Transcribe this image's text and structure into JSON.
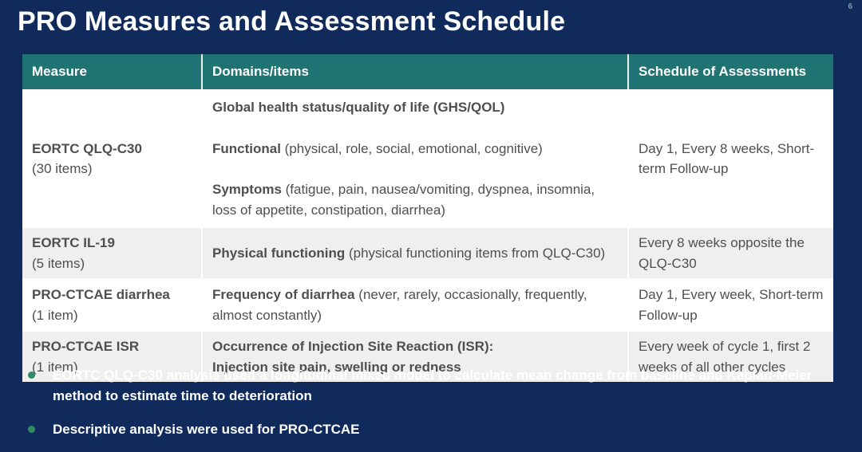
{
  "slide": {
    "title": "PRO Measures and Assessment Schedule",
    "page_number": "6"
  },
  "table": {
    "headers": [
      "Measure",
      "Domains/items",
      "Schedule of Assessments"
    ],
    "rows": [
      {
        "measure": "EORTC QLQ-C30",
        "items": "(30 items)",
        "domains": [
          {
            "b": "Global health status/quality of life (GHS/QOL)",
            "r": ""
          },
          {
            "b": "Functional",
            "r": " (physical, role, social, emotional, cognitive)"
          },
          {
            "b": "Symptoms",
            "r": " (fatigue, pain, nausea/vomiting, dyspnea, insomnia, loss of appetite, constipation, diarrhea)"
          }
        ],
        "schedule": "Day 1, Every 8 weeks, Short-term Follow-up"
      },
      {
        "measure": "EORTC IL-19",
        "items": "(5 items)",
        "domains": [
          {
            "b": "Physical functioning",
            "r": " (physical functioning items from QLQ-C30)"
          }
        ],
        "schedule": "Every 8 weeks opposite the QLQ-C30"
      },
      {
        "measure": "PRO-CTCAE diarrhea",
        "items": "(1 item)",
        "domains": [
          {
            "b": "Frequency of diarrhea",
            "r": " (never, rarely, occasionally, frequently, almost constantly)"
          }
        ],
        "schedule": "Day 1, Every week, Short-term Follow-up"
      },
      {
        "measure": "PRO-CTCAE ISR",
        "items": "(1 item)",
        "domains": [
          {
            "b": "Occurrence of Injection Site Reaction (ISR):",
            "r": ""
          },
          {
            "b": "Injection site pain, swelling or redness",
            "r": ""
          }
        ],
        "schedule": "Every week of cycle 1, first 2 weeks of all other cycles"
      }
    ]
  },
  "bullets": [
    "EORTC QLQ-C30 analysis used a longitudinal mixed model to calculate mean change from baseline and Kaplan-Meier method to estimate time to deterioration",
    "Descriptive analysis were used for PRO-CTCAE"
  ],
  "colors": {
    "background_navy": "#0f2a5b",
    "header_teal": "#1f7473",
    "row_alt_gray": "#efefef",
    "row_white": "#ffffff",
    "body_text_gray": "#4f4f4f",
    "bullet_dot_green": "#2e8c64",
    "title_white": "#ffffff"
  }
}
